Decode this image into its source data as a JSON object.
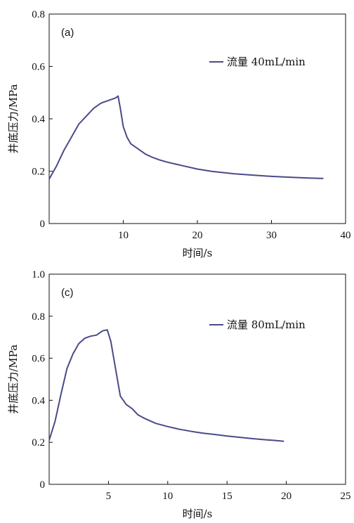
{
  "chart_data": [
    {
      "type": "line",
      "panel_label": "(a)",
      "xlabel": "时间/s",
      "ylabel": "井底压力/MPa",
      "xlim": [
        0,
        40
      ],
      "ylim": [
        0,
        0.8
      ],
      "xticks": [
        10,
        20,
        30,
        40
      ],
      "xtick_labels": [
        "10",
        "20",
        "30",
        "40"
      ],
      "yticks": [
        0,
        0.2,
        0.4,
        0.6,
        0.8
      ],
      "ytick_labels": [
        "0",
        "0.2",
        "0.4",
        "0.6",
        "0.8"
      ],
      "legend_position": "upper-right",
      "color": "#4a4a8a",
      "series": [
        {
          "name": "流量 40mL/min",
          "x": [
            0,
            1,
            2,
            3,
            4,
            5,
            6,
            7,
            7.5,
            8,
            8.5,
            9,
            9.3,
            9.6,
            10,
            10.5,
            11,
            12,
            13,
            14,
            15,
            16,
            18,
            20,
            22,
            25,
            28,
            30,
            33,
            35,
            37
          ],
          "y": [
            0.17,
            0.22,
            0.28,
            0.33,
            0.38,
            0.41,
            0.44,
            0.46,
            0.465,
            0.47,
            0.475,
            0.48,
            0.487,
            0.44,
            0.37,
            0.33,
            0.305,
            0.285,
            0.265,
            0.252,
            0.242,
            0.234,
            0.221,
            0.208,
            0.199,
            0.19,
            0.184,
            0.18,
            0.176,
            0.174,
            0.172
          ]
        }
      ]
    },
    {
      "type": "line",
      "panel_label": "(c)",
      "xlabel": "时间/s",
      "ylabel": "井底压力/MPa",
      "xlim": [
        0,
        25
      ],
      "ylim": [
        0,
        1.0
      ],
      "xticks": [
        5,
        10,
        15,
        20,
        25
      ],
      "xtick_labels": [
        "5",
        "10",
        "15",
        "20",
        "25"
      ],
      "yticks": [
        0,
        0.2,
        0.4,
        0.6,
        0.8,
        1.0
      ],
      "ytick_labels": [
        "0",
        "0.2",
        "0.4",
        "0.6",
        "0.8",
        "1.0"
      ],
      "legend_position": "upper-right",
      "color": "#4a4a8a",
      "series": [
        {
          "name": "流量 80mL/min",
          "x": [
            0,
            0.5,
            1,
            1.5,
            2,
            2.5,
            3,
            3.5,
            4,
            4.5,
            4.9,
            5.2,
            5.6,
            6,
            6.5,
            7,
            7.5,
            8,
            9,
            10,
            11,
            12,
            13,
            14,
            15,
            16,
            17,
            18,
            19,
            19.8
          ],
          "y": [
            0.21,
            0.3,
            0.43,
            0.55,
            0.62,
            0.67,
            0.695,
            0.705,
            0.71,
            0.73,
            0.735,
            0.68,
            0.55,
            0.42,
            0.38,
            0.36,
            0.33,
            0.315,
            0.29,
            0.275,
            0.262,
            0.252,
            0.243,
            0.237,
            0.23,
            0.224,
            0.218,
            0.213,
            0.209,
            0.205
          ]
        }
      ]
    }
  ]
}
